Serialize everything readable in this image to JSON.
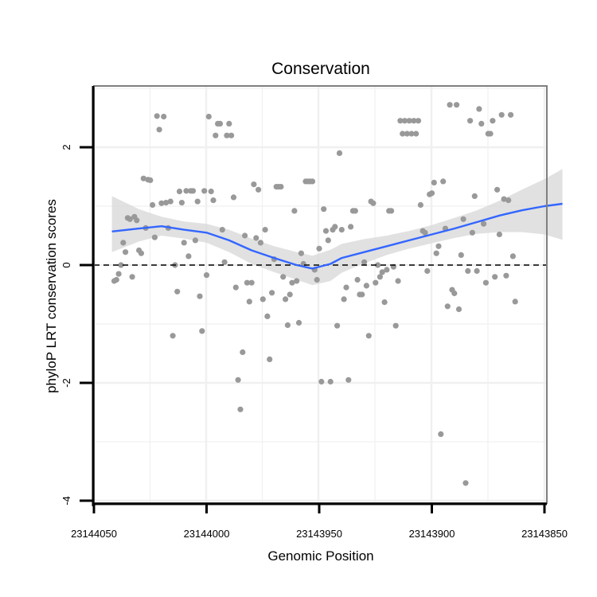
{
  "chart_data": {
    "type": "scatter",
    "title": "Conservation",
    "xlabel": "Genomic Position",
    "ylabel": "phyloP LRT conservation scores",
    "x_reversed": true,
    "xlim": [
      23144050,
      23143850
    ],
    "ylim": [
      -4,
      3
    ],
    "x_ticks": [
      23144050,
      23144000,
      23143950,
      23143900,
      23143850
    ],
    "x_tick_labels": [
      "23144050",
      "23144000",
      "23143950",
      "23143900",
      "23143850"
    ],
    "y_ticks": [
      -4,
      -2,
      0,
      2
    ],
    "y_tick_labels": [
      "-4",
      "-2",
      "0",
      "2"
    ],
    "reference_line": {
      "y": 0,
      "style": "dashed"
    },
    "colors": {
      "points": "#999999",
      "smooth": "#3366ff",
      "ribbon": "#d9d9d9",
      "grid": "#f0f0f0",
      "panel_border": "#7f7f7f"
    },
    "smooth": {
      "x": [
        23144042,
        23144030,
        23144020,
        23144010,
        23144000,
        23143990,
        23143980,
        23143970,
        23143960,
        23143953,
        23143945,
        23143940,
        23143930,
        23143920,
        23143910,
        23143900,
        23143890,
        23143880,
        23143870,
        23143860,
        23143850,
        23143842
      ],
      "y": [
        0.57,
        0.62,
        0.66,
        0.6,
        0.55,
        0.42,
        0.25,
        0.12,
        0.0,
        -0.06,
        0.02,
        0.12,
        0.22,
        0.32,
        0.42,
        0.52,
        0.62,
        0.73,
        0.84,
        0.93,
        1.0,
        1.04
      ],
      "lower": [
        0.22,
        0.4,
        0.5,
        0.45,
        0.38,
        0.22,
        0.02,
        -0.12,
        -0.25,
        -0.34,
        -0.27,
        -0.13,
        0.03,
        0.17,
        0.28,
        0.37,
        0.46,
        0.53,
        0.56,
        0.56,
        0.52,
        0.43
      ],
      "upper": [
        1.17,
        0.95,
        0.82,
        0.74,
        0.7,
        0.6,
        0.45,
        0.32,
        0.22,
        0.16,
        0.26,
        0.36,
        0.44,
        0.5,
        0.58,
        0.68,
        0.8,
        0.93,
        1.09,
        1.28,
        1.46,
        1.63
      ]
    },
    "points": [
      [
        23144041,
        -0.27
      ],
      [
        23144040,
        -0.25
      ],
      [
        23144039,
        -0.15
      ],
      [
        23144038,
        0.0
      ],
      [
        23144037,
        0.38
      ],
      [
        23144036,
        0.22
      ],
      [
        23144035,
        0.8
      ],
      [
        23144034,
        0.78
      ],
      [
        23144033,
        -0.2
      ],
      [
        23144032,
        0.82
      ],
      [
        23144031,
        0.76
      ],
      [
        23144030,
        0.25
      ],
      [
        23144029,
        0.2
      ],
      [
        23144028,
        1.47
      ],
      [
        23144027,
        0.63
      ],
      [
        23144026,
        1.45
      ],
      [
        23144025,
        1.44
      ],
      [
        23144024,
        1.02
      ],
      [
        23144023,
        0.47
      ],
      [
        23144022,
        2.53
      ],
      [
        23144021,
        2.3
      ],
      [
        23144020,
        1.05
      ],
      [
        23144019,
        2.52
      ],
      [
        23144018,
        1.06
      ],
      [
        23144017,
        0.63
      ],
      [
        23144016,
        1.08
      ],
      [
        23144015,
        -1.2
      ],
      [
        23144014,
        0.0
      ],
      [
        23144013,
        -0.45
      ],
      [
        23144012,
        1.25
      ],
      [
        23144011,
        1.06
      ],
      [
        23144010,
        0.38
      ],
      [
        23144009,
        1.26
      ],
      [
        23144008,
        0.15
      ],
      [
        23144007,
        1.26
      ],
      [
        23144006,
        1.26
      ],
      [
        23144005,
        0.42
      ],
      [
        23144004,
        1.08
      ],
      [
        23144003,
        -0.53
      ],
      [
        23144002,
        -1.12
      ],
      [
        23144001,
        1.26
      ],
      [
        23144000,
        -0.17
      ],
      [
        23143999,
        2.52
      ],
      [
        23143998,
        1.25
      ],
      [
        23143997,
        1.1
      ],
      [
        23143996,
        2.2
      ],
      [
        23143995,
        2.4
      ],
      [
        23143994,
        2.4
      ],
      [
        23143993,
        0.6
      ],
      [
        23143992,
        0.05
      ],
      [
        23143991,
        2.2
      ],
      [
        23143990,
        2.4
      ],
      [
        23143989,
        2.2
      ],
      [
        23143988,
        1.15
      ],
      [
        23143987,
        -0.38
      ],
      [
        23143986,
        -1.95
      ],
      [
        23143985,
        -2.45
      ],
      [
        23143984,
        -1.48
      ],
      [
        23143983,
        0.5
      ],
      [
        23143982,
        -0.3
      ],
      [
        23143981,
        -0.62
      ],
      [
        23143980,
        -0.3
      ],
      [
        23143979,
        1.37
      ],
      [
        23143978,
        0.46
      ],
      [
        23143977,
        1.28
      ],
      [
        23143976,
        0.38
      ],
      [
        23143975,
        -0.58
      ],
      [
        23143974,
        0.6
      ],
      [
        23143973,
        -0.87
      ],
      [
        23143972,
        -1.6
      ],
      [
        23143971,
        -0.47
      ],
      [
        23143970,
        0.1
      ],
      [
        23143969,
        1.33
      ],
      [
        23143968,
        1.33
      ],
      [
        23143967,
        1.33
      ],
      [
        23143966,
        -0.2
      ],
      [
        23143965,
        -0.58
      ],
      [
        23143964,
        -1.02
      ],
      [
        23143963,
        -0.5
      ],
      [
        23143962,
        -0.3
      ],
      [
        23143961,
        0.92
      ],
      [
        23143960,
        -0.27
      ],
      [
        23143959,
        -0.98
      ],
      [
        23143958,
        0.2
      ],
      [
        23143957,
        0.02
      ],
      [
        23143956,
        1.42
      ],
      [
        23143955,
        1.42
      ],
      [
        23143954,
        1.42
      ],
      [
        23143953,
        1.42
      ],
      [
        23143952,
        -0.08
      ],
      [
        23143951,
        -0.25
      ],
      [
        23143950,
        0.28
      ],
      [
        23143949,
        -1.98
      ],
      [
        23143948,
        0.95
      ],
      [
        23143947,
        0.58
      ],
      [
        23143946,
        0.42
      ],
      [
        23143945,
        -1.98
      ],
      [
        23143944,
        0.6
      ],
      [
        23143943,
        0.65
      ],
      [
        23143942,
        -1.03
      ],
      [
        23143941,
        1.9
      ],
      [
        23143940,
        0.6
      ],
      [
        23143939,
        -0.58
      ],
      [
        23143938,
        -0.38
      ],
      [
        23143937,
        -1.95
      ],
      [
        23143936,
        0.65
      ],
      [
        23143935,
        0.92
      ],
      [
        23143934,
        0.92
      ],
      [
        23143933,
        -0.25
      ],
      [
        23143932,
        -0.5
      ],
      [
        23143931,
        -0.5
      ],
      [
        23143930,
        0.05
      ],
      [
        23143929,
        -0.35
      ],
      [
        23143928,
        -1.2
      ],
      [
        23143927,
        1.08
      ],
      [
        23143926,
        1.05
      ],
      [
        23143925,
        -0.3
      ],
      [
        23143924,
        0.0
      ],
      [
        23143923,
        -0.2
      ],
      [
        23143922,
        -0.12
      ],
      [
        23143921,
        -0.63
      ],
      [
        23143920,
        -0.08
      ],
      [
        23143919,
        0.92
      ],
      [
        23143918,
        0.92
      ],
      [
        23143917,
        -0.03
      ],
      [
        23143916,
        -1.03
      ],
      [
        23143915,
        -0.27
      ],
      [
        23143914,
        2.45
      ],
      [
        23143913,
        2.23
      ],
      [
        23143912,
        2.45
      ],
      [
        23143911,
        2.23
      ],
      [
        23143910,
        2.45
      ],
      [
        23143909,
        2.23
      ],
      [
        23143908,
        2.45
      ],
      [
        23143907,
        2.23
      ],
      [
        23143906,
        2.45
      ],
      [
        23143905,
        1.02
      ],
      [
        23143904,
        0.58
      ],
      [
        23143903,
        0.55
      ],
      [
        23143902,
        -0.1
      ],
      [
        23143901,
        1.2
      ],
      [
        23143900,
        1.22
      ],
      [
        23143899,
        1.4
      ],
      [
        23143898,
        0.2
      ],
      [
        23143897,
        0.32
      ],
      [
        23143896,
        -2.87
      ],
      [
        23143895,
        1.42
      ],
      [
        23143894,
        0.62
      ],
      [
        23143893,
        -0.7
      ],
      [
        23143892,
        2.72
      ],
      [
        23143891,
        -0.42
      ],
      [
        23143890,
        -0.48
      ],
      [
        23143889,
        2.72
      ],
      [
        23143888,
        -0.75
      ],
      [
        23143887,
        0.17
      ],
      [
        23143886,
        0.78
      ],
      [
        23143885,
        -3.7
      ],
      [
        23143884,
        -0.1
      ],
      [
        23143883,
        2.45
      ],
      [
        23143882,
        0.55
      ],
      [
        23143881,
        1.17
      ],
      [
        23143880,
        -0.1
      ],
      [
        23143879,
        2.65
      ],
      [
        23143878,
        2.4
      ],
      [
        23143877,
        0.7
      ],
      [
        23143876,
        -0.3
      ],
      [
        23143875,
        2.23
      ],
      [
        23143874,
        2.23
      ],
      [
        23143873,
        2.45
      ],
      [
        23143872,
        -0.2
      ],
      [
        23143871,
        1.28
      ],
      [
        23143870,
        0.52
      ],
      [
        23143869,
        2.55
      ],
      [
        23143868,
        1.12
      ],
      [
        23143867,
        -0.18
      ],
      [
        23143866,
        1.1
      ],
      [
        23143865,
        2.55
      ],
      [
        23143864,
        0.15
      ],
      [
        23143863,
        -0.62
      ]
    ]
  }
}
